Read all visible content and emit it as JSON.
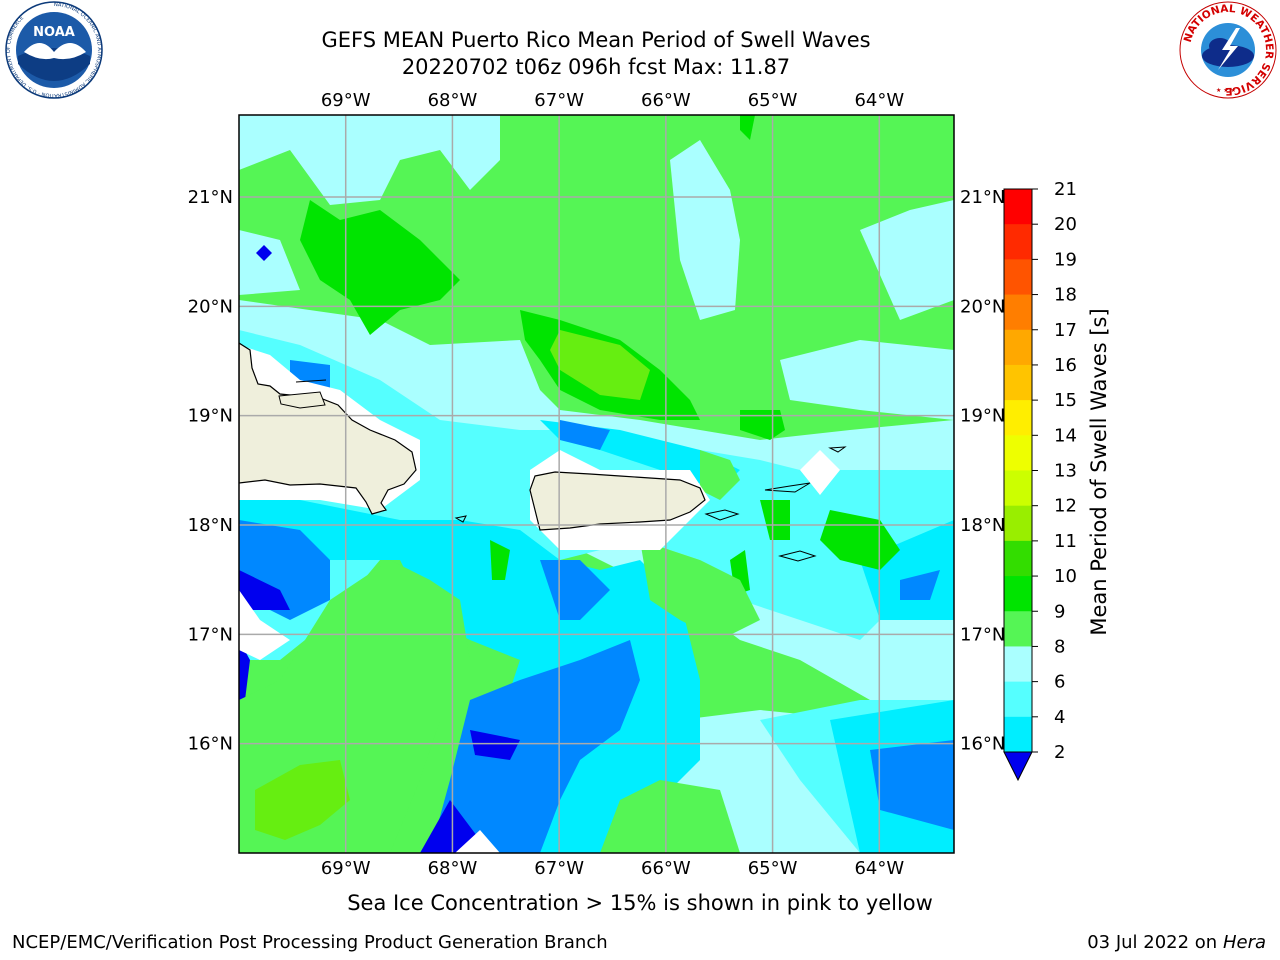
{
  "title": {
    "line1": "GEFS MEAN Puerto Rico Mean Period of Swell Waves",
    "line2": "20220702 t06z 096h fcst   Max: 11.87"
  },
  "note": "Sea Ice Concentration > 15% is shown in pink to yellow",
  "footer": {
    "left": "NCEP/EMC/Verification Post Processing Product Generation Branch",
    "date": "03 Jul 2022 on ",
    "host": "Hera"
  },
  "logos": {
    "noaa": {
      "text": "NOAA",
      "ring": "NATIONAL OCEANIC AND ATMOSPHERIC ADMINISTRATION · U.S. DEPARTMENT OF COMMERCE"
    },
    "nws": {
      "ring": "NATIONAL WEATHER SERVICE"
    }
  },
  "map": {
    "lon_labels": [
      "69°W",
      "68°W",
      "67°W",
      "66°W",
      "65°W",
      "64°W"
    ],
    "lat_labels": [
      "21°N",
      "20°N",
      "19°N",
      "18°N",
      "17°N",
      "16°N"
    ],
    "lon_values": [
      -69,
      -68,
      -67,
      -66,
      -65,
      -64
    ],
    "lat_values": [
      21,
      20,
      19,
      18,
      17,
      16
    ],
    "lon_range": [
      -70,
      -63.3
    ],
    "lat_range": [
      15,
      21.75
    ]
  },
  "colorbar": {
    "label": "Mean Period of Swell Waves [s]",
    "ticks": [
      "21",
      "20",
      "19",
      "18",
      "17",
      "16",
      "15",
      "14",
      "13",
      "12",
      "11",
      "10",
      "9",
      "8",
      "6",
      "4",
      "2"
    ],
    "colors": [
      "#ff0000",
      "#ff2a00",
      "#ff5400",
      "#ff7e00",
      "#ffa800",
      "#ffc400",
      "#ffee00",
      "#eeff00",
      "#ccff00",
      "#99ee00",
      "#33dd00",
      "#00e400",
      "#55f555",
      "#aaffff",
      "#55ffff",
      "#00eeff",
      "#0088ff",
      "#0000ee"
    ]
  }
}
